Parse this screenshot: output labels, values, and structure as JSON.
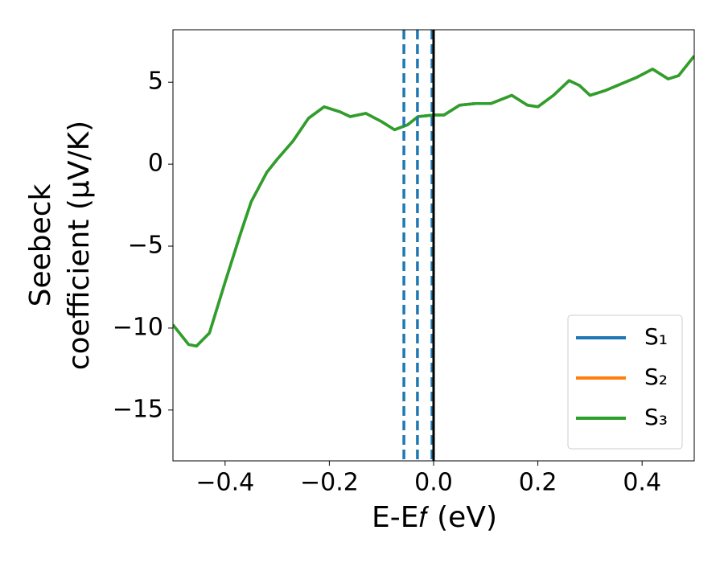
{
  "chart_data": {
    "type": "line",
    "xlabel": "E-E𝑓 (eV)",
    "ylabel": [
      "Seebeck",
      "coefficient  (μV/K)"
    ],
    "x": [
      -0.5,
      -0.47,
      -0.455,
      -0.43,
      -0.4,
      -0.37,
      -0.35,
      -0.32,
      -0.3,
      -0.27,
      -0.24,
      -0.21,
      -0.18,
      -0.16,
      -0.13,
      -0.1,
      -0.075,
      -0.05,
      -0.03,
      0,
      0.02,
      0.05,
      0.08,
      0.11,
      0.15,
      0.18,
      0.2,
      0.23,
      0.26,
      0.28,
      0.3,
      0.33,
      0.36,
      0.39,
      0.42,
      0.45,
      0.47,
      0.5
    ],
    "series": [
      {
        "name": "S₁",
        "color": "#1f77b4",
        "values": [
          -9.8,
          -11.0,
          -11.1,
          -10.3,
          -7.2,
          -4.2,
          -2.3,
          -0.5,
          0.3,
          1.4,
          2.8,
          3.5,
          3.2,
          2.9,
          3.1,
          2.6,
          2.1,
          2.4,
          2.9,
          3.0,
          3.0,
          3.6,
          3.7,
          3.7,
          4.2,
          3.6,
          3.5,
          4.2,
          5.1,
          4.8,
          4.2,
          4.5,
          4.9,
          5.3,
          5.8,
          5.2,
          5.4,
          6.6
        ]
      },
      {
        "name": "S₂",
        "color": "#ff7f0e",
        "values": [
          -9.8,
          -11.0,
          -11.1,
          -10.3,
          -7.2,
          -4.2,
          -2.3,
          -0.5,
          0.3,
          1.4,
          2.8,
          3.5,
          3.2,
          2.9,
          3.1,
          2.6,
          2.1,
          2.4,
          2.9,
          3.0,
          3.0,
          3.6,
          3.7,
          3.7,
          4.2,
          3.6,
          3.5,
          4.2,
          5.1,
          4.8,
          4.2,
          4.5,
          4.9,
          5.3,
          5.8,
          5.2,
          5.4,
          6.6
        ]
      },
      {
        "name": "S₃",
        "color": "#2ca02c",
        "values": [
          -9.8,
          -11.0,
          -11.1,
          -10.3,
          -7.2,
          -4.2,
          -2.3,
          -0.5,
          0.3,
          1.4,
          2.8,
          3.5,
          3.2,
          2.9,
          3.1,
          2.6,
          2.1,
          2.4,
          2.9,
          3.0,
          3.0,
          3.6,
          3.7,
          3.7,
          4.2,
          3.6,
          3.5,
          4.2,
          5.1,
          4.8,
          4.2,
          4.5,
          4.9,
          5.3,
          5.8,
          5.2,
          5.4,
          6.6
        ]
      }
    ],
    "vlines": [
      {
        "x": -0.057,
        "color": "#1f77b4",
        "style": "dashed"
      },
      {
        "x": -0.031,
        "color": "#1f77b4",
        "style": "dashed"
      },
      {
        "x": -0.003,
        "color": "#1f77b4",
        "style": "dashed"
      },
      {
        "x": 0,
        "color": "#000000",
        "style": "solid"
      }
    ],
    "xlim": [
      -0.5,
      0.5
    ],
    "xticks": [
      {
        "value": -0.4,
        "label": "−0.4"
      },
      {
        "value": -0.2,
        "label": "−0.2"
      },
      {
        "value": 0,
        "label": "0.0"
      },
      {
        "value": 0.2,
        "label": "0.2"
      },
      {
        "value": 0.4,
        "label": "0.4"
      }
    ],
    "ylim": [
      -18.1,
      8.2
    ],
    "yticks": [
      5,
      0,
      {
        "value": -5,
        "label": "−5"
      },
      {
        "value": -10,
        "label": "−10"
      },
      {
        "value": -15,
        "label": "−15"
      }
    ],
    "legend": "lower right"
  }
}
